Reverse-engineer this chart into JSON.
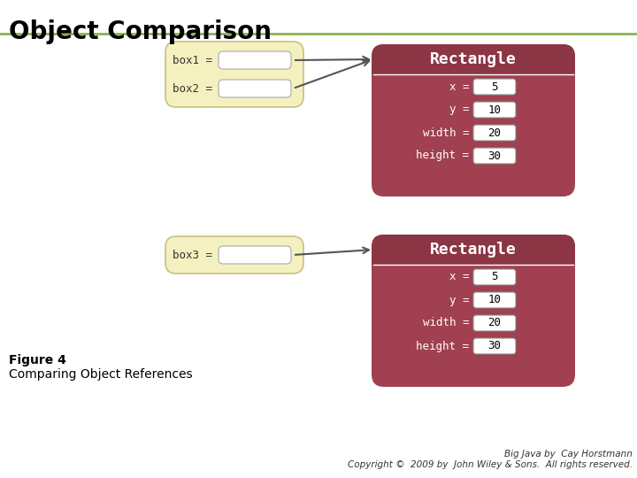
{
  "title": "Object Comparison",
  "title_color": "#000000",
  "title_fontsize": 20,
  "bg_color": "#ffffff",
  "title_line_color": "#8db050",
  "rect_bg": "#a04050",
  "rect_header_text_color": "#ffffff",
  "rect_title": "Rectangle",
  "ref_box_bg": "#f5f0c0",
  "ref_box_border": "#c8c080",
  "value_box_bg": "#ffffff",
  "value_box_border": "#aaaaaa",
  "field_label_color": "#ffffff",
  "field_value_color": "#000000",
  "fields": [
    "x =",
    "y =",
    "width =",
    "height ="
  ],
  "values": [
    "5",
    "10",
    "20",
    "30"
  ],
  "ref_labels_top": [
    "box1 =",
    "box2 ="
  ],
  "ref_label_bottom": "box3 =",
  "arrow_color": "#555555",
  "figure_label": "Figure 4",
  "figure_caption": "Comparing Object References",
  "copyright": "Big Java by  Cay Horstmann\nCopyright ©  2009 by  John Wiley & Sons.  All rights reserved.",
  "monospace_font": "monospace"
}
